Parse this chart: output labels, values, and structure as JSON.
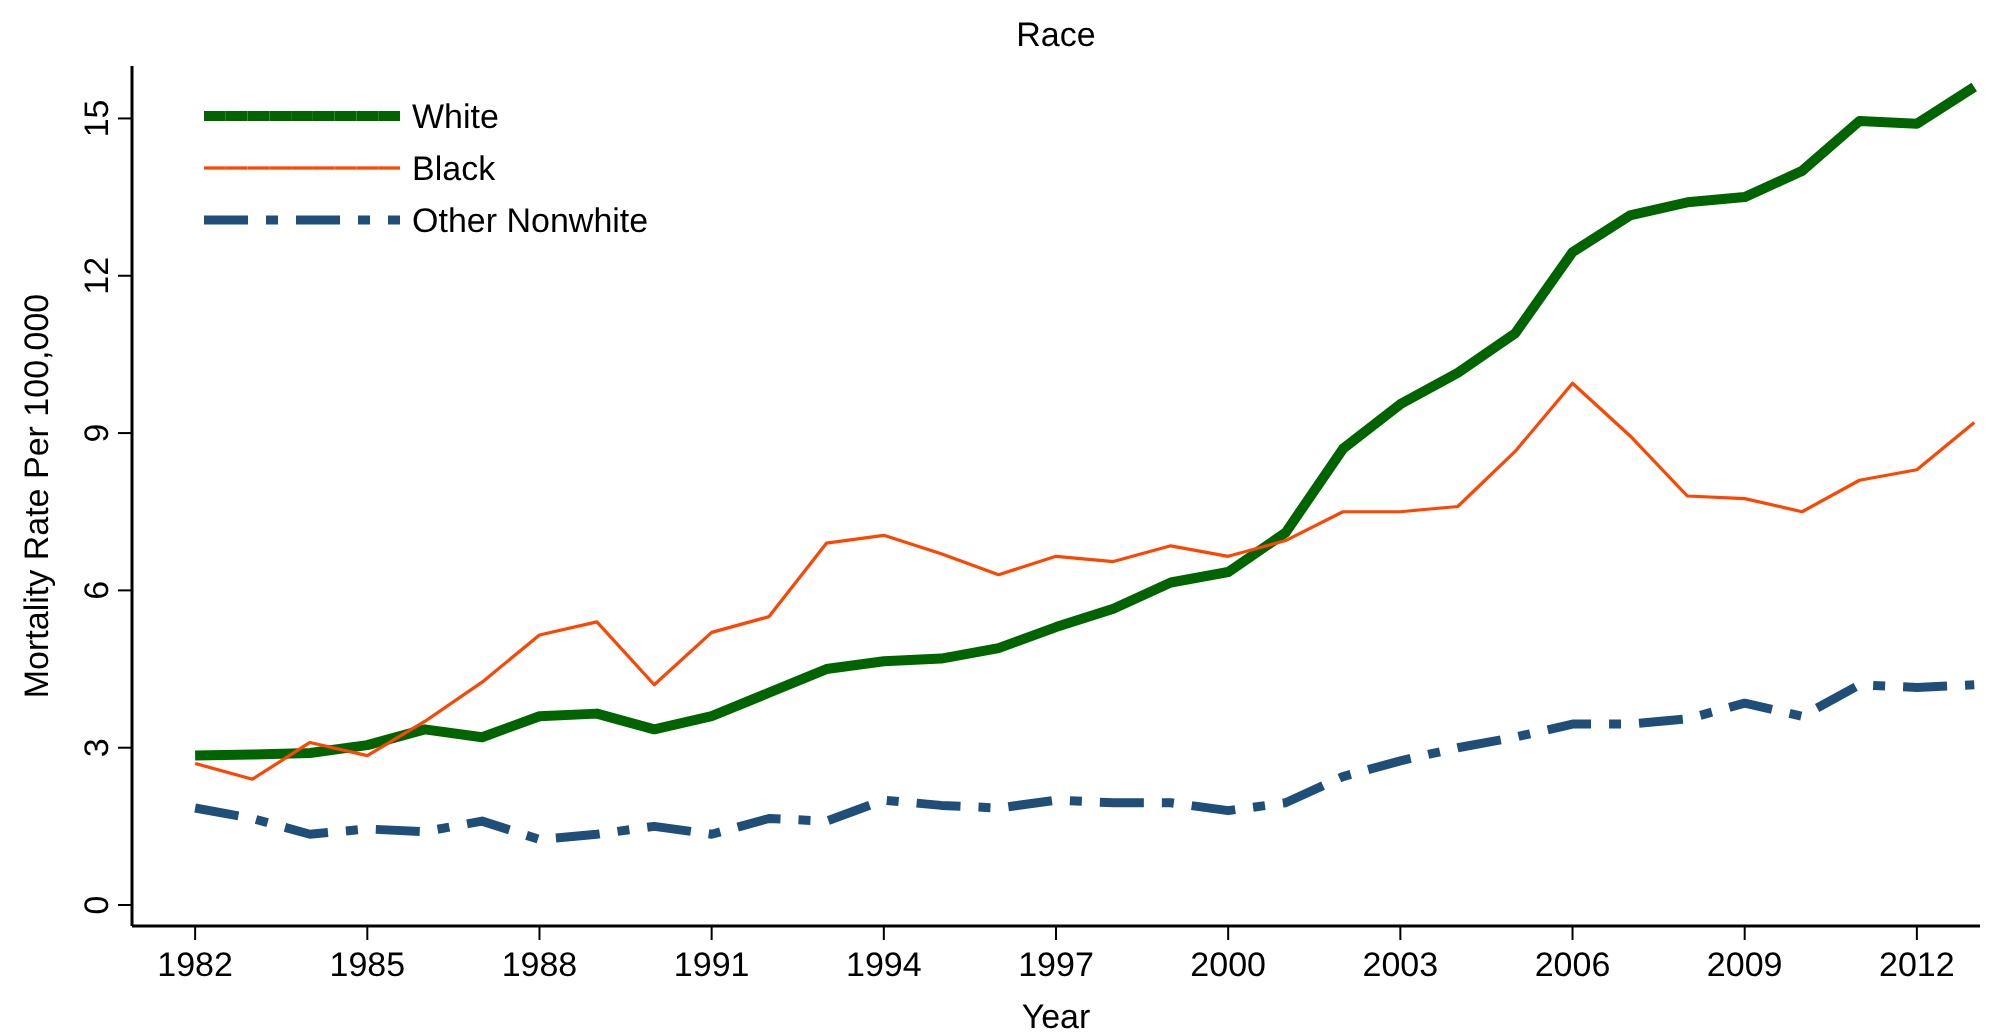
{
  "chart_data": {
    "type": "line",
    "title": "Race",
    "xlabel": "Year",
    "ylabel": "Mortality Rate Per 100,000",
    "x": [
      1982,
      1983,
      1984,
      1985,
      1986,
      1987,
      1988,
      1989,
      1990,
      1991,
      1992,
      1993,
      1994,
      1995,
      1996,
      1997,
      1998,
      1999,
      2000,
      2001,
      2002,
      2003,
      2004,
      2005,
      2006,
      2007,
      2008,
      2009,
      2010,
      2011,
      2012,
      2013
    ],
    "series": [
      {
        "name": "White",
        "color": "#006400",
        "line_style": "solid",
        "values": [
          2.85,
          2.87,
          2.9,
          3.05,
          3.35,
          3.2,
          3.6,
          3.65,
          3.35,
          3.6,
          4.05,
          4.5,
          4.65,
          4.7,
          4.9,
          5.3,
          5.65,
          6.15,
          6.35,
          7.1,
          8.7,
          9.55,
          10.15,
          10.9,
          12.45,
          13.15,
          13.4,
          13.5,
          14.0,
          14.95,
          14.9,
          15.6
        ]
      },
      {
        "name": "Black",
        "color": "#ff4500",
        "line_style": "solid",
        "values": [
          2.7,
          2.4,
          3.1,
          2.85,
          3.5,
          4.25,
          5.15,
          5.4,
          4.2,
          5.2,
          5.5,
          6.9,
          7.05,
          6.7,
          6.3,
          6.65,
          6.55,
          6.85,
          6.65,
          6.95,
          7.5,
          7.5,
          7.6,
          8.65,
          9.95,
          8.95,
          7.8,
          7.75,
          7.5,
          8.1,
          8.3,
          9.2
        ]
      },
      {
        "name": "Other Nonwhite",
        "color": "#1f4e79",
        "line_style": "dashed",
        "values": [
          1.85,
          1.65,
          1.35,
          1.45,
          1.4,
          1.6,
          1.25,
          1.35,
          1.5,
          1.35,
          1.65,
          1.6,
          2.0,
          1.9,
          1.85,
          2.0,
          1.95,
          1.95,
          1.8,
          1.95,
          2.45,
          2.75,
          3.0,
          3.2,
          3.45,
          3.45,
          3.55,
          3.85,
          3.6,
          4.2,
          4.15,
          4.2
        ]
      }
    ],
    "xlim": [
      1980.9,
      2013.1
    ],
    "xticks": [
      1982,
      1985,
      1988,
      1991,
      1994,
      1997,
      2000,
      2003,
      2006,
      2009,
      2012
    ],
    "ylim": [
      -0.4,
      16
    ],
    "yticks": [
      0,
      3,
      6,
      9,
      12,
      15
    ],
    "grid": false,
    "legend": "top left",
    "marker": "none"
  }
}
